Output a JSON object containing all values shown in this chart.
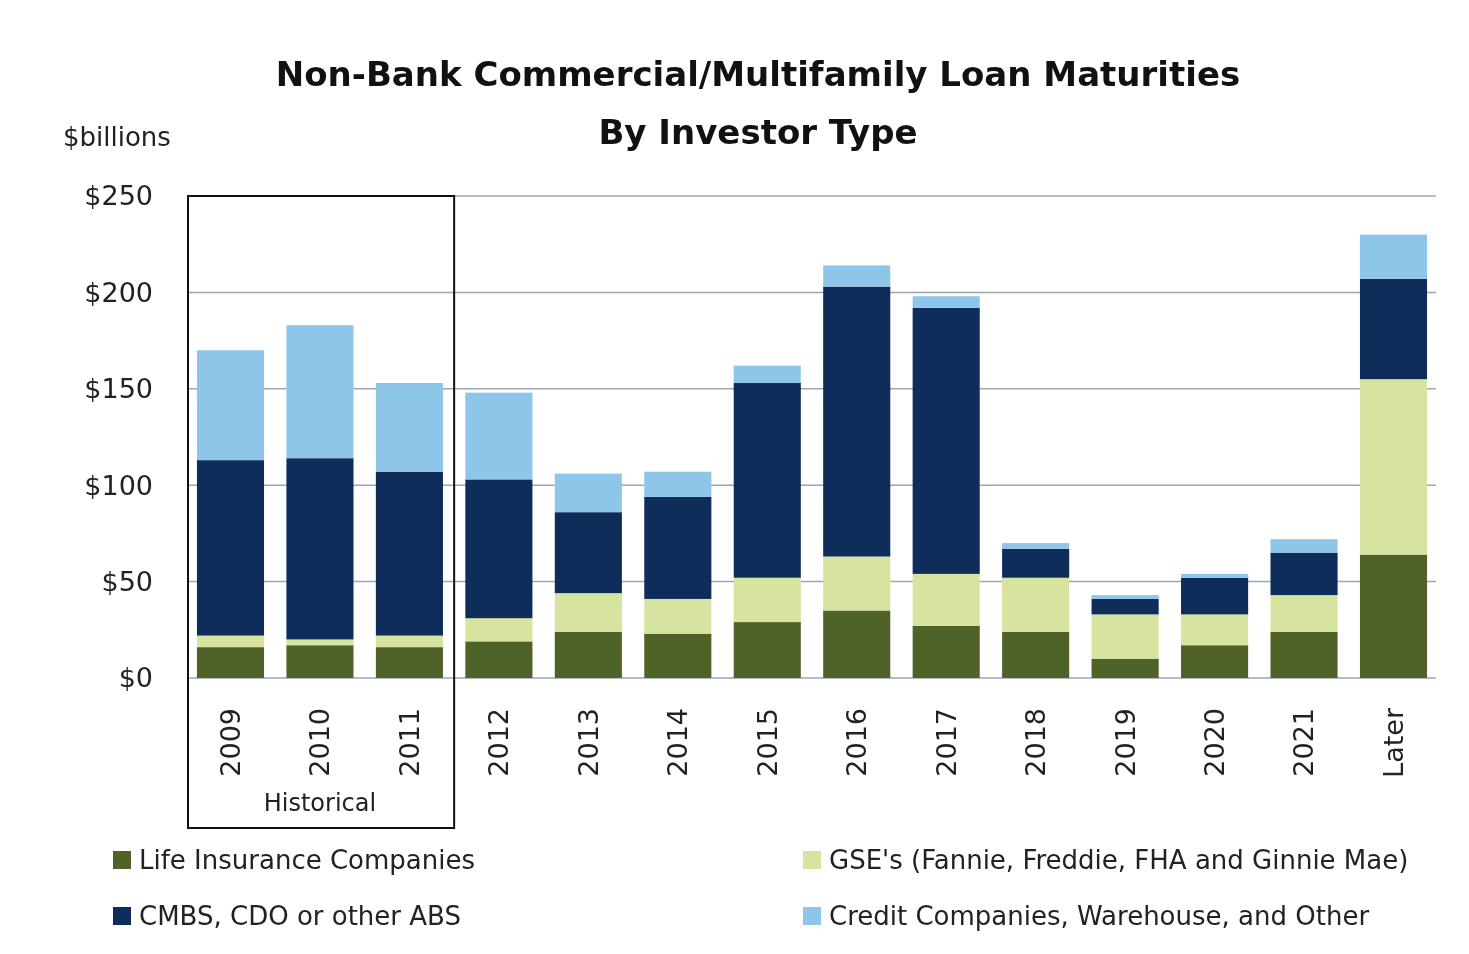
{
  "chart_data": {
    "type": "bar",
    "stacked": true,
    "title": "Non-Bank Commercial/Multifamily Loan Maturities\nBy Investor Type",
    "ylabel": "$billions",
    "categories": [
      "2009",
      "2010",
      "2011",
      "2012",
      "2013",
      "2014",
      "2015",
      "2016",
      "2017",
      "2018",
      "2019",
      "2020",
      "2021",
      "Later"
    ],
    "series": [
      {
        "name": "Life Insurance Companies",
        "color": "#4f6228",
        "values": [
          16,
          17,
          16,
          19,
          24,
          23,
          29,
          35,
          27,
          24,
          10,
          17,
          24,
          64
        ]
      },
      {
        "name": "GSE's (Fannie, Freddie, FHA and Ginnie Mae)",
        "color": "#d7e4a0",
        "values": [
          6,
          3,
          6,
          12,
          20,
          18,
          23,
          28,
          27,
          28,
          23,
          16,
          19,
          91
        ]
      },
      {
        "name": "CMBS, CDO or other ABS",
        "color": "#0f2d5a",
        "values": [
          91,
          94,
          85,
          72,
          42,
          53,
          101,
          140,
          138,
          15,
          8,
          19,
          22,
          52
        ]
      },
      {
        "name": "Credit Companies, Warehouse, and Other",
        "color": "#8ec6ea",
        "values": [
          57,
          69,
          46,
          45,
          20,
          13,
          9,
          11,
          6,
          3,
          2,
          2,
          7,
          23
        ]
      }
    ],
    "ylim": [
      0,
      250
    ],
    "yticks": [
      {
        "value": 0,
        "label": "$0"
      },
      {
        "value": 50,
        "label": "$50"
      },
      {
        "value": 100,
        "label": "$100"
      },
      {
        "value": 150,
        "label": "$150"
      },
      {
        "value": 200,
        "label": "$200"
      },
      {
        "value": 250,
        "label": "$250"
      }
    ],
    "grid": "y",
    "legend": "bottom",
    "annotations": [
      "Historical"
    ]
  }
}
